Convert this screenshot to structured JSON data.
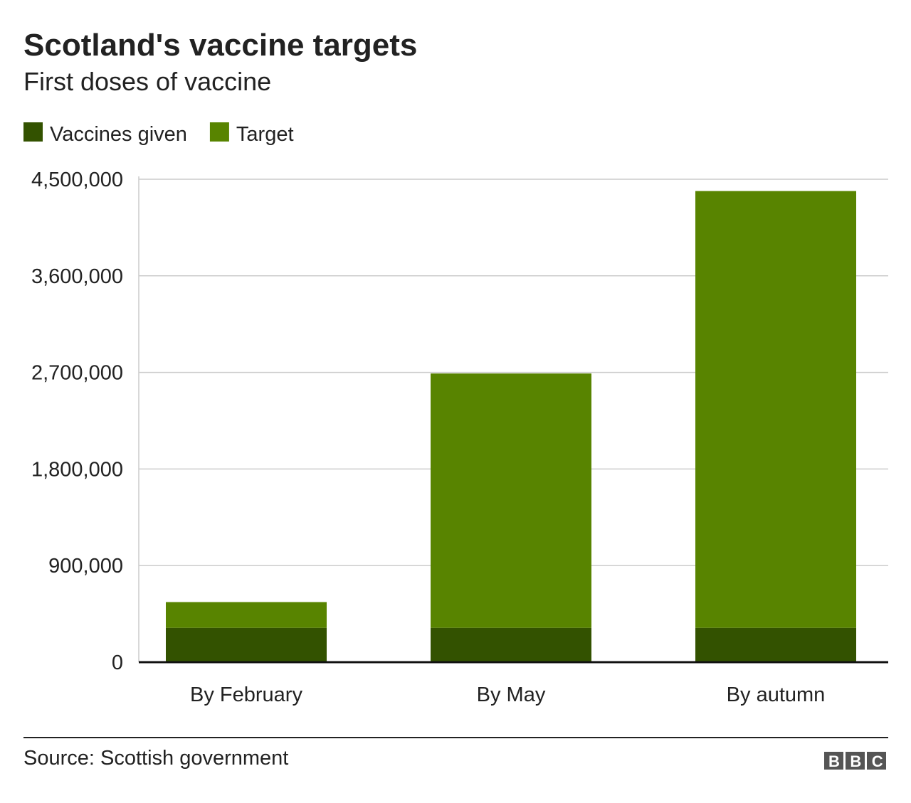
{
  "chart_data": {
    "type": "stacked-bar",
    "title": "Scotland's vaccine targets",
    "subtitle": "First doses of vaccine",
    "categories": [
      "By February",
      "By May",
      "By autumn"
    ],
    "series": [
      {
        "name": "Vaccines given",
        "color": "#335200",
        "values": [
          320000,
          320000,
          320000
        ]
      },
      {
        "name": "Target",
        "color": "#588400",
        "values": [
          240000,
          2370000,
          4070000
        ]
      }
    ],
    "ylim": [
      0,
      4500000
    ],
    "yticks": [
      0,
      {
        "value": 900000,
        "label": "900,000"
      },
      {
        "value": 1800000,
        "label": "1,800,000"
      },
      {
        "value": 2700000,
        "label": "2,700,000"
      },
      {
        "value": 3600000,
        "label": "3,600,000"
      },
      {
        "value": 4500000,
        "label": "4,500,000"
      }
    ],
    "grid": true,
    "source": "Source: Scottish government",
    "logo": "BBC"
  }
}
